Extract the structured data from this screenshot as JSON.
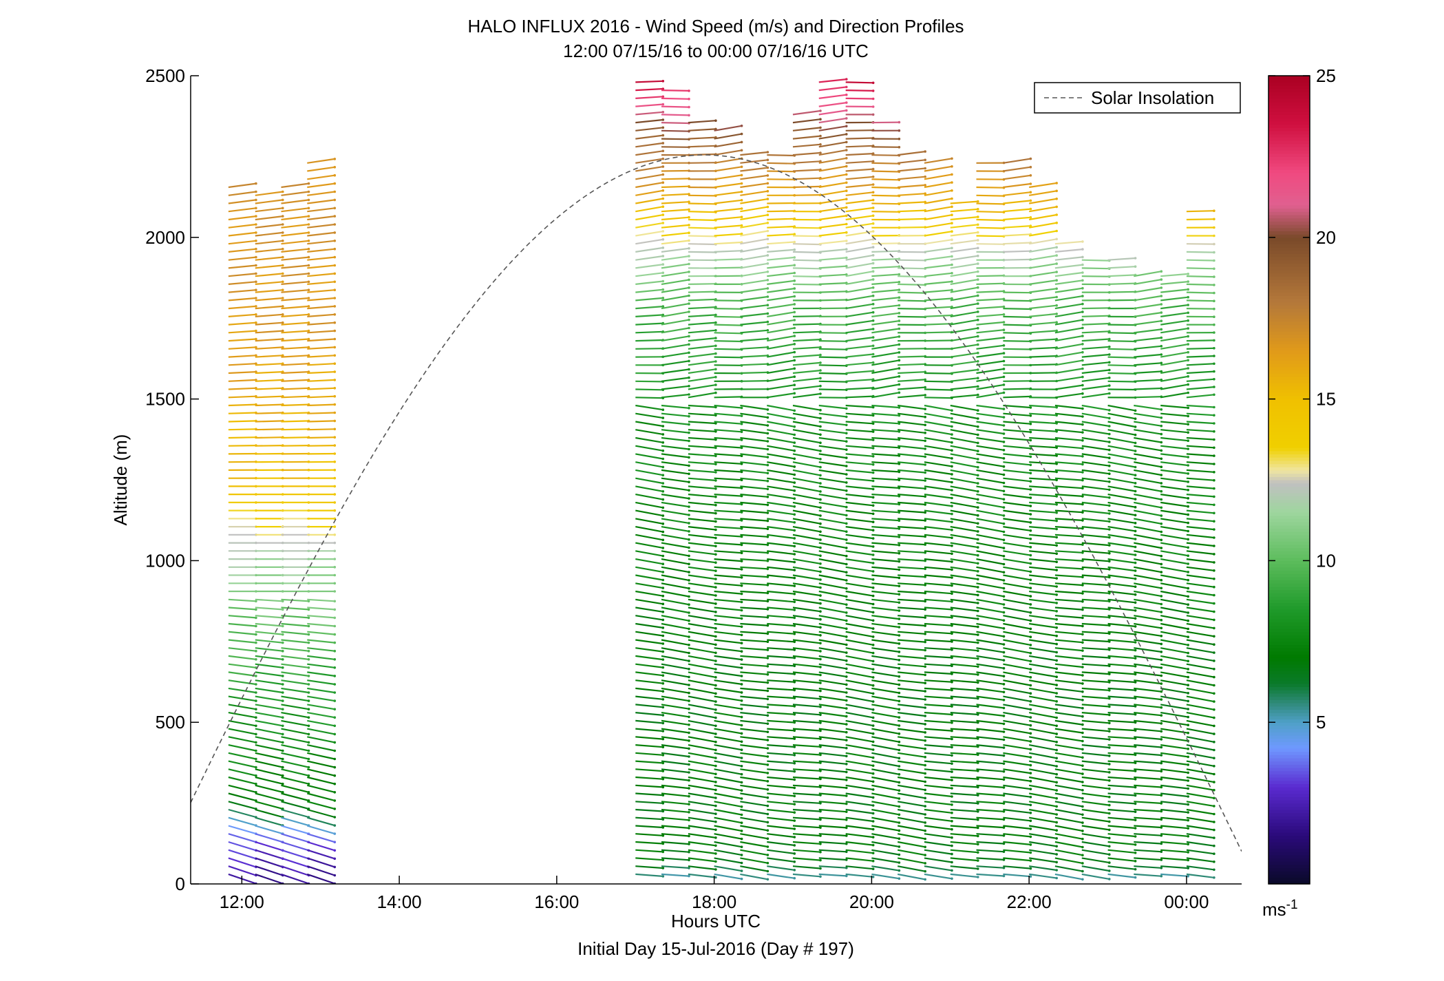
{
  "chart_data": {
    "type": "wind-barb-profile",
    "title": "HALO INFLUX 2016 - Wind Speed (m/s) and Direction Profiles",
    "subtitle": "12:00 07/15/16 to 00:00 07/16/16  UTC",
    "xlabel": "Hours UTC",
    "xlabel2": "Initial Day 15-Jul-2016 (Day # 197)",
    "ylabel": "Altitude (m)",
    "xlim": [
      11.35,
      24.7
    ],
    "ylim": [
      0,
      2500
    ],
    "x_ticks": [
      {
        "v": 12,
        "label": "12:00"
      },
      {
        "v": 14,
        "label": "14:00"
      },
      {
        "v": 16,
        "label": "16:00"
      },
      {
        "v": 18,
        "label": "18:00"
      },
      {
        "v": 20,
        "label": "20:00"
      },
      {
        "v": 22,
        "label": "22:00"
      },
      {
        "v": 24,
        "label": "00:00"
      }
    ],
    "y_ticks": [
      0,
      500,
      1000,
      1500,
      2000,
      2500
    ],
    "legend": {
      "label": "Solar Insolation",
      "position": "top-right"
    },
    "colorbar": {
      "range": [
        0,
        25
      ],
      "ticks": [
        5,
        10,
        15,
        20,
        25
      ],
      "unit_label": "ms",
      "unit_exp": "-1"
    },
    "profile_times": [
      11.83,
      12.17,
      12.5,
      12.83,
      17.0,
      17.33,
      17.67,
      18.0,
      18.33,
      18.67,
      19.0,
      19.33,
      19.67,
      20.0,
      20.33,
      20.67,
      21.0,
      21.33,
      21.67,
      22.0,
      22.33,
      22.67,
      23.0,
      23.33,
      23.67,
      24.0
    ],
    "profile_max_altitude_m": [
      2160,
      2150,
      2160,
      2230,
      2500,
      2460,
      2360,
      2330,
      2260,
      2260,
      2400,
      2500,
      2500,
      2370,
      2260,
      2250,
      2120,
      2240,
      2230,
      2170,
      2000,
      1950,
      1950,
      1880,
      1900,
      2100
    ],
    "altitude_step_m": 25,
    "speed_by_altitude_early": [
      [
        0,
        1.5
      ],
      [
        150,
        3.5
      ],
      [
        250,
        7
      ],
      [
        600,
        8.5
      ],
      [
        1000,
        11.5
      ],
      [
        1100,
        13
      ],
      [
        1250,
        15
      ],
      [
        1700,
        16.5
      ],
      [
        2200,
        17
      ]
    ],
    "speed_by_altitude_late": [
      [
        0,
        4.5
      ],
      [
        80,
        7
      ],
      [
        600,
        7
      ],
      [
        1400,
        7.8
      ],
      [
        1800,
        9.5
      ],
      [
        1950,
        12
      ],
      [
        2100,
        15.5
      ],
      [
        2300,
        19
      ],
      [
        2500,
        24
      ]
    ],
    "solar_insolation": {
      "peak_time": 17.6,
      "peak_altitude_m": 2255,
      "zero_times": [
        10.85,
        24.9
      ]
    }
  }
}
